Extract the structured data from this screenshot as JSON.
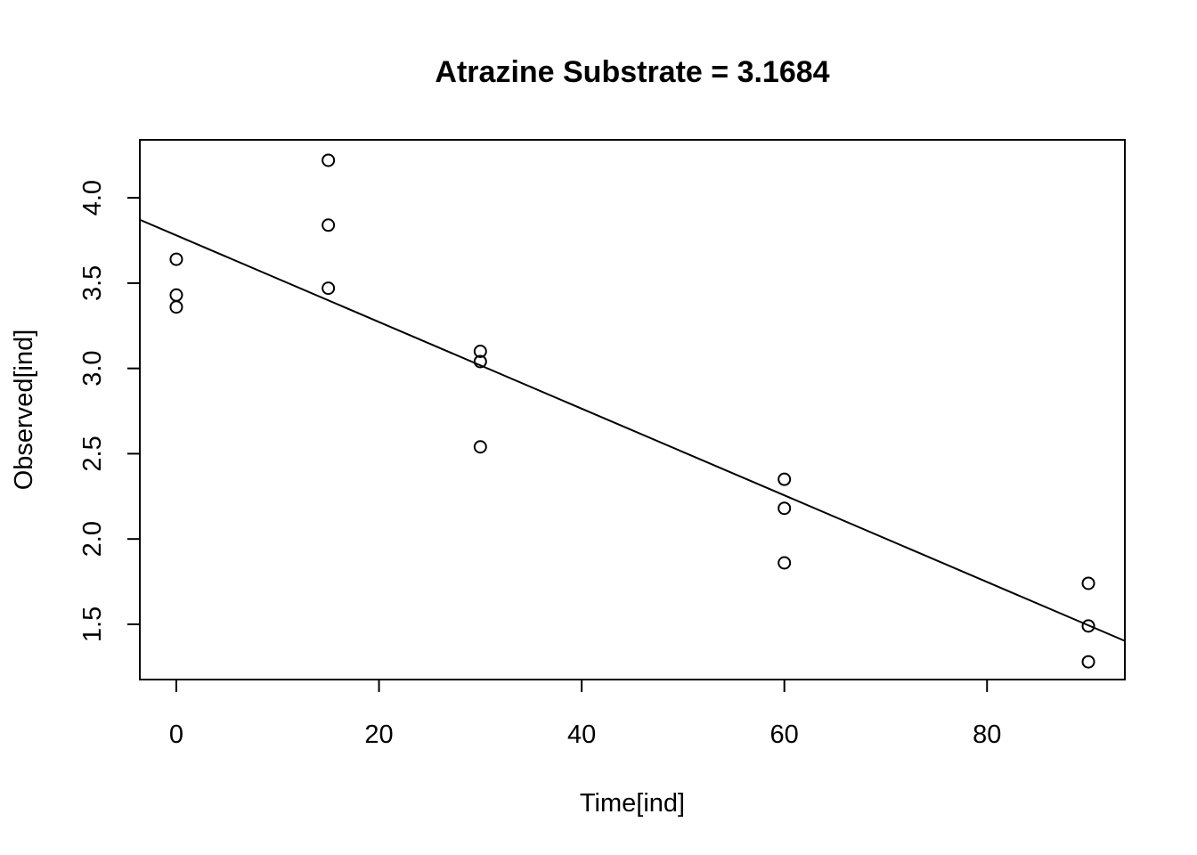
{
  "chart_data": {
    "type": "scatter",
    "title": "Atrazine Substrate = 3.1684",
    "xlabel": "Time[ind]",
    "ylabel": "Observed[ind]",
    "xlim": [
      -3.6,
      93.6
    ],
    "ylim": [
      1.176,
      4.34
    ],
    "x_ticks": [
      0,
      20,
      40,
      60,
      80
    ],
    "y_ticks": [
      1.5,
      2.0,
      2.5,
      3.0,
      3.5,
      4.0
    ],
    "y_tick_labels": [
      "1.5",
      "2.0",
      "2.5",
      "3.0",
      "3.5",
      "4.0"
    ],
    "grid": false,
    "points": {
      "x": [
        0,
        0,
        0,
        15,
        15,
        15,
        30,
        30,
        30,
        60,
        60,
        60,
        90,
        90,
        90
      ],
      "y": [
        3.64,
        3.43,
        3.36,
        4.22,
        3.84,
        3.47,
        3.1,
        3.04,
        2.54,
        2.35,
        2.18,
        1.86,
        1.74,
        1.49,
        1.28
      ]
    },
    "fit_line": {
      "intercept": 3.78,
      "slope": -0.0254
    }
  }
}
